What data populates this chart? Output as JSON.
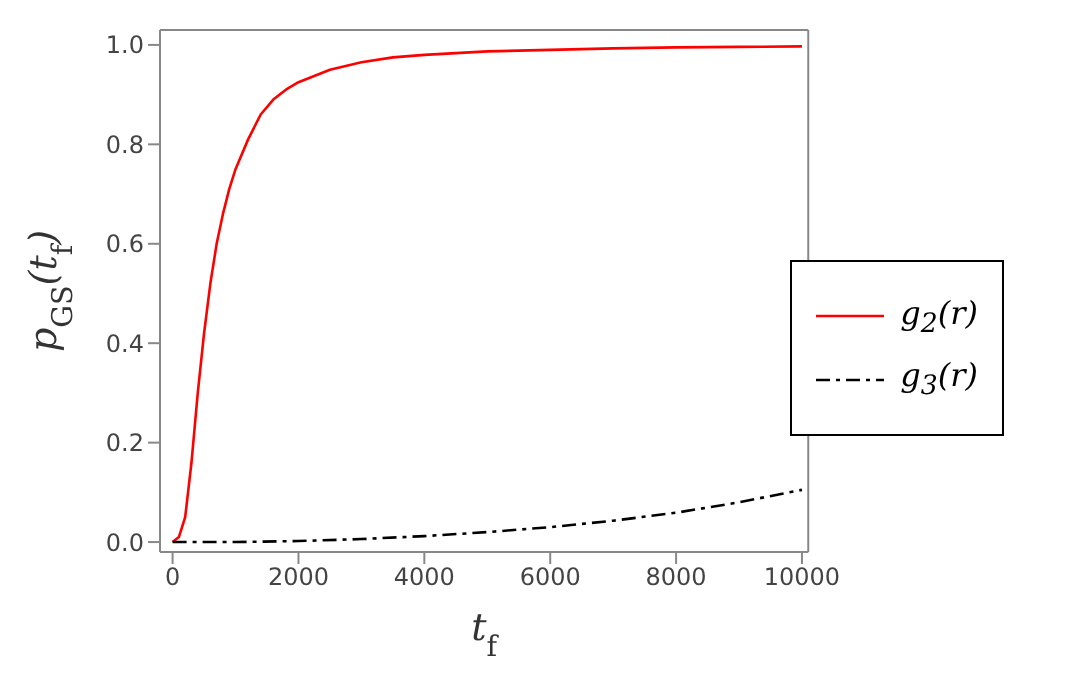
{
  "chart_data": {
    "type": "line",
    "xlabel": "t$_{f}$",
    "ylabel": "p$_{GS}$(t$_{f}$)",
    "xlim": [
      -200,
      10100
    ],
    "ylim": [
      -0.02,
      1.03
    ],
    "xticks": [
      0,
      2000,
      4000,
      6000,
      8000,
      10000
    ],
    "yticks": [
      {
        "value": 0,
        "label": "0.0"
      },
      {
        "value": 0.2,
        "label": "0.2"
      },
      {
        "value": 0.4,
        "label": "0.4"
      },
      {
        "value": 0.6,
        "label": "0.6"
      },
      {
        "value": 0.8,
        "label": "0.8"
      },
      {
        "value": 1,
        "label": "1.0"
      }
    ],
    "legend": "right",
    "marker": "none",
    "series": [
      {
        "name": "g$_{2}$(r)",
        "color": "#ff0000",
        "line_style": "solid",
        "x": [
          0,
          100,
          200,
          300,
          400,
          500,
          600,
          700,
          800,
          900,
          1000,
          1200,
          1400,
          1600,
          1800,
          2000,
          2500,
          3000,
          3500,
          4000,
          5000,
          6000,
          7000,
          8000,
          9000,
          10000
        ],
        "values": [
          0,
          0.01,
          0.05,
          0.16,
          0.3,
          0.42,
          0.52,
          0.6,
          0.66,
          0.71,
          0.75,
          0.81,
          0.86,
          0.89,
          0.91,
          0.925,
          0.95,
          0.965,
          0.975,
          0.98,
          0.987,
          0.99,
          0.993,
          0.995,
          0.996,
          0.997
        ]
      },
      {
        "name": "g$_{3}$(r)",
        "color": "#000000",
        "line_style": "dashdot",
        "x": [
          0,
          1000,
          2000,
          3000,
          4000,
          5000,
          6000,
          7000,
          8000,
          9000,
          10000
        ],
        "values": [
          0,
          0,
          0.002,
          0.006,
          0.012,
          0.02,
          0.03,
          0.043,
          0.059,
          0.08,
          0.105
        ]
      }
    ]
  }
}
